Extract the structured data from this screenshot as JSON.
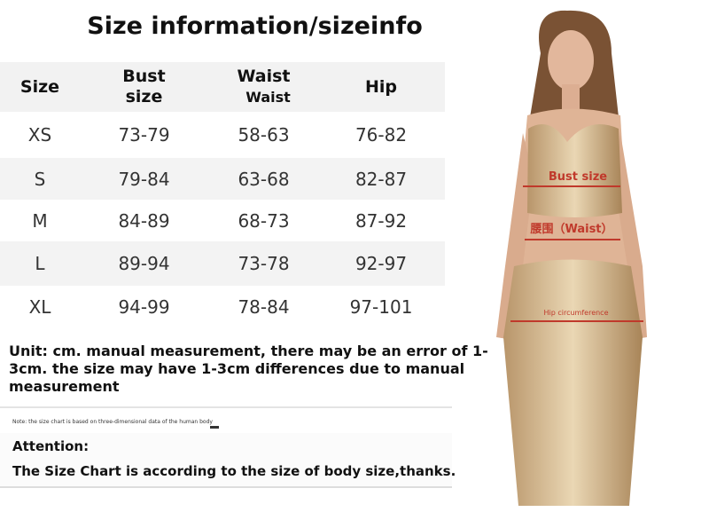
{
  "title": "Size information/sizeinfo",
  "table": {
    "headers": [
      [
        "Size"
      ],
      [
        "Bust",
        "size"
      ],
      [
        "Waist",
        "Waist"
      ],
      [
        "Hip"
      ]
    ],
    "rows": [
      [
        "XS",
        "73-79",
        "58-63",
        "76-82"
      ],
      [
        "S",
        "79-84",
        "63-68",
        "82-87"
      ],
      [
        "M",
        "84-89",
        "68-73",
        "87-92"
      ],
      [
        "L",
        "89-94",
        "73-78",
        "92-97"
      ],
      [
        "XL",
        "94-99",
        "78-84",
        "97-101"
      ]
    ]
  },
  "unit_note": "Unit: cm. manual measurement, there may be an error of 1-3cm. the size may have 1-3cm differences due to manual measurement",
  "small_note": "Note: the size chart is based on three-dimensional data of the human body",
  "attention": {
    "title": "Attention:",
    "text": "The Size Chart is according to the size of body size,thanks."
  },
  "image_labels": {
    "bust": "Bust size",
    "waist": "腰围（Waist）",
    "hip": "Hip circumference"
  }
}
